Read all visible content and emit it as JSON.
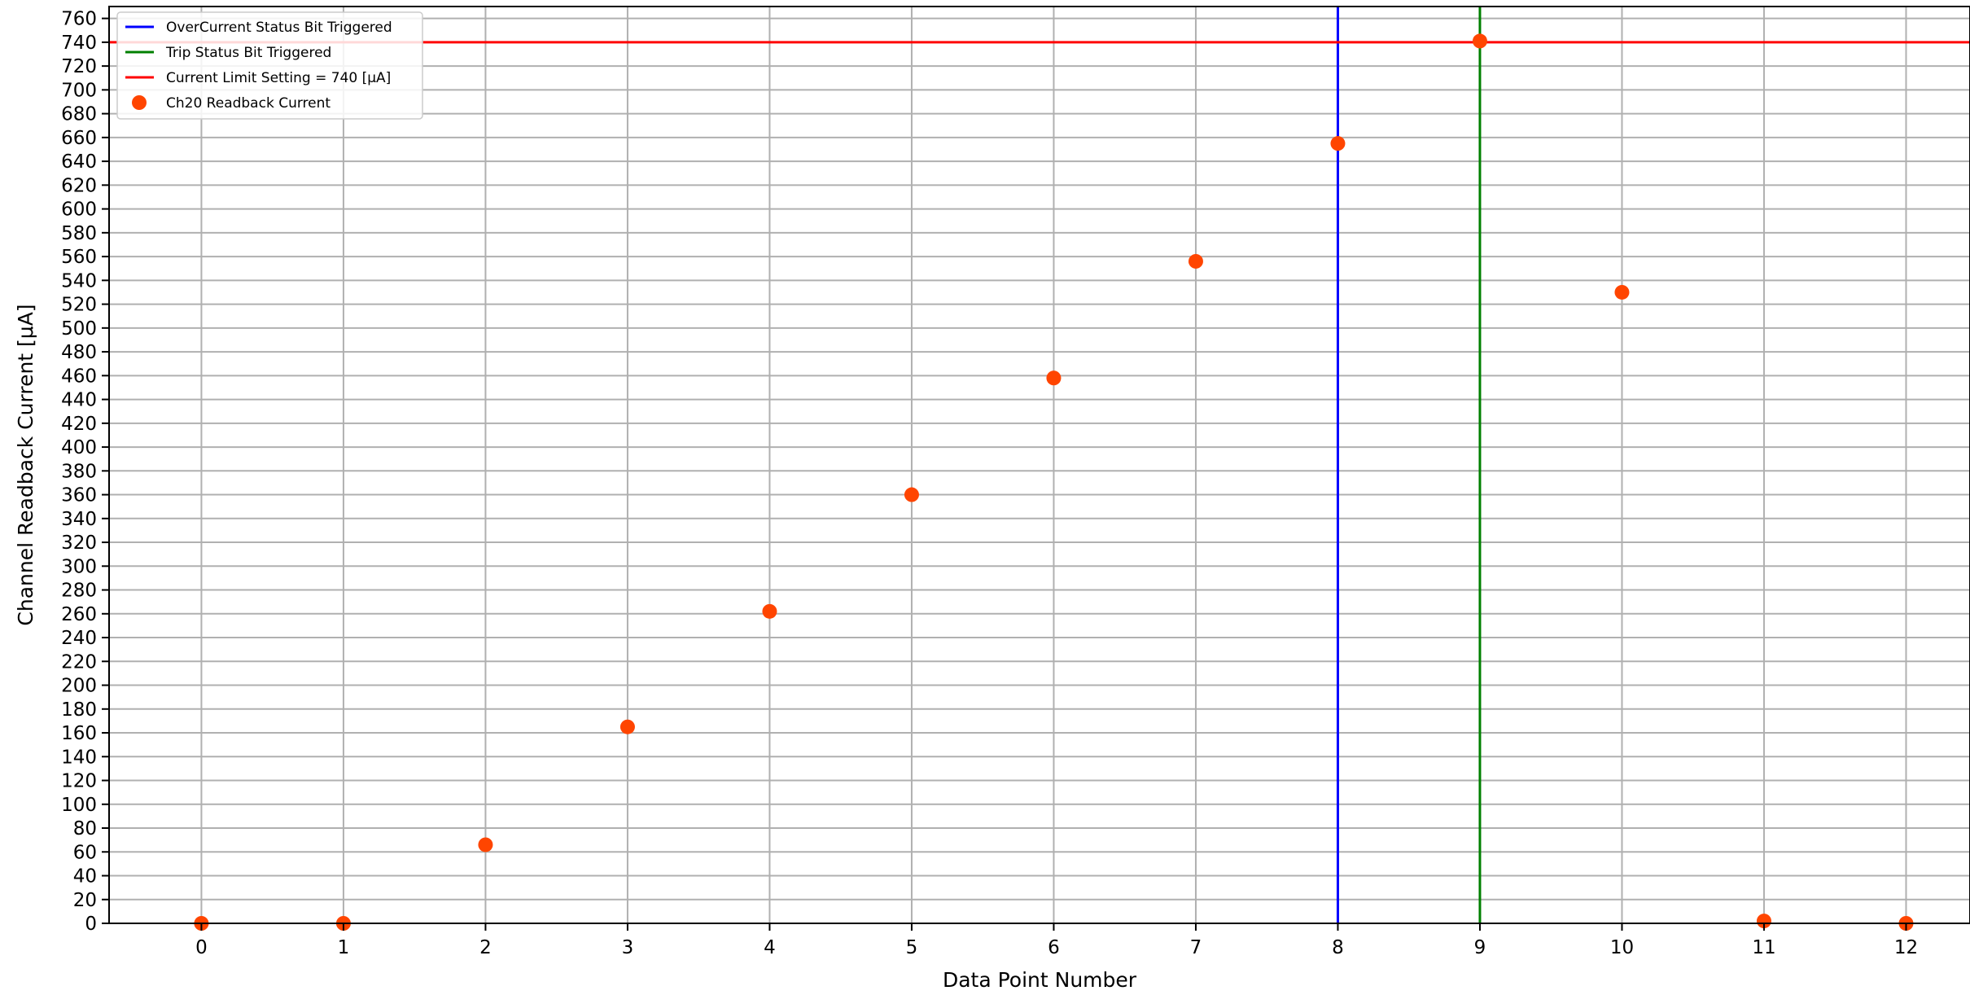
{
  "chart_data": {
    "type": "scatter",
    "title": "",
    "xlabel": "Data Point Number",
    "ylabel": "Channel Readback Current [μA]",
    "xlim": [
      -0.65,
      12.45
    ],
    "ylim": [
      0,
      770
    ],
    "x_ticks": [
      0,
      1,
      2,
      3,
      4,
      5,
      6,
      7,
      8,
      9,
      10,
      11,
      12
    ],
    "y_ticks": [
      0,
      20,
      40,
      60,
      80,
      100,
      120,
      140,
      160,
      180,
      200,
      220,
      240,
      260,
      280,
      300,
      320,
      340,
      360,
      380,
      400,
      420,
      440,
      460,
      480,
      500,
      520,
      540,
      560,
      580,
      600,
      620,
      640,
      660,
      680,
      700,
      720,
      740,
      760
    ],
    "grid": true,
    "legend_position": "top-left",
    "series": [
      {
        "name": "Ch20 Readback Current",
        "kind": "scatter",
        "color": "#ff4500",
        "x": [
          0,
          1,
          2,
          3,
          4,
          5,
          6,
          7,
          8,
          9,
          10,
          11,
          12
        ],
        "y": [
          0,
          0,
          66,
          165,
          262,
          360,
          458,
          556,
          655,
          741,
          530,
          2,
          0
        ]
      }
    ],
    "reference_lines": [
      {
        "name": "OverCurrent Status Bit Triggered",
        "orientation": "vertical",
        "value": 8,
        "color": "#0000ff"
      },
      {
        "name": "Trip Status Bit Triggered",
        "orientation": "vertical",
        "value": 9,
        "color": "#008000"
      },
      {
        "name": "Current Limit Setting = 740 [μA]",
        "orientation": "horizontal",
        "value": 740,
        "color": "#ff0000"
      }
    ],
    "legend": [
      {
        "label": "OverCurrent Status Bit Triggered",
        "marker": "line",
        "color": "#0000ff"
      },
      {
        "label": "Trip Status Bit Triggered",
        "marker": "line",
        "color": "#008000"
      },
      {
        "label": "Current Limit Setting = 740 [μA]",
        "marker": "line",
        "color": "#ff0000"
      },
      {
        "label": "Ch20 Readback Current",
        "marker": "dot",
        "color": "#ff4500"
      }
    ]
  }
}
